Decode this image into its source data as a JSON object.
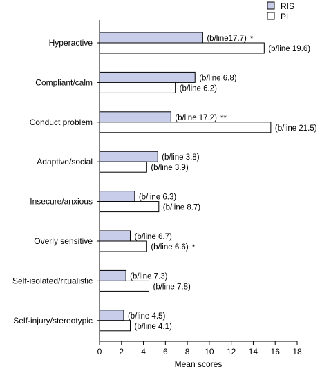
{
  "chart_data": {
    "type": "bar",
    "orientation": "horizontal",
    "title": "",
    "xlabel": "Mean scores",
    "ylabel": "",
    "xlim": [
      0,
      18
    ],
    "xticks": [
      0,
      2,
      4,
      6,
      8,
      10,
      12,
      14,
      16,
      18
    ],
    "grid": false,
    "legend_position": "top-right",
    "categories": [
      "Hyperactive",
      "Compliant/calm",
      "Conduct problem",
      "Adaptive/social",
      "Insecure/anxious",
      "Overly sensitive",
      "Self-isolated/ritualistic",
      "Self-injury/stereotypic"
    ],
    "series": [
      {
        "name": "RIS",
        "color": "#c8cde9",
        "values": [
          9.4,
          8.7,
          6.5,
          5.3,
          3.2,
          2.8,
          2.4,
          2.2
        ],
        "labels": [
          "(b/line17.7)",
          "(b/line 6.8)",
          "(b/line 17.2)",
          "(b/line 3.8)",
          "(b/line 6.3)",
          "(b/line 6.7)",
          "(b/line 7.3)",
          "(b/line 4.5)"
        ],
        "significance": [
          "*",
          "",
          "**",
          "",
          "",
          "",
          "",
          ""
        ]
      },
      {
        "name": "PL",
        "color": "#ffffff",
        "values": [
          15.0,
          6.9,
          15.6,
          4.3,
          5.4,
          4.3,
          4.5,
          2.8
        ],
        "labels": [
          "(b/line 19.6)",
          "(b/line 6.2)",
          "(b/line 21.5)",
          "(b/line 3.9)",
          "(b/line 8.7)",
          "(b/line 6.6)",
          "(b/line 7.8)",
          "(b/line 4.1)"
        ],
        "significance": [
          "",
          "",
          "",
          "",
          "",
          "*",
          "",
          ""
        ]
      }
    ]
  }
}
